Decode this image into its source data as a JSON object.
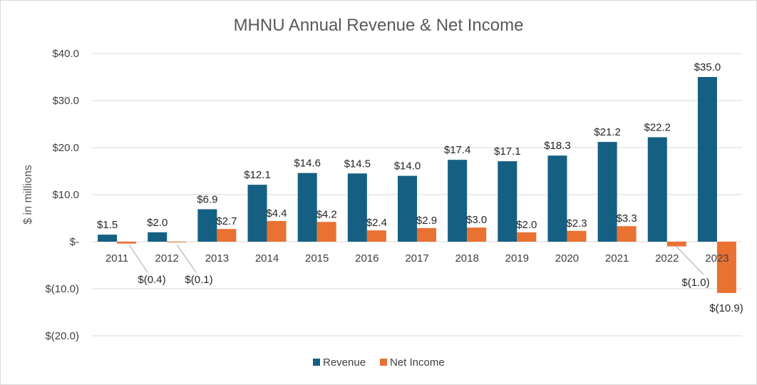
{
  "chart_data": {
    "type": "bar",
    "title": "MHNU Annual Revenue & Net Income",
    "xlabel": "",
    "ylabel": "$ in millions",
    "ylim": [
      -20,
      40
    ],
    "yticks": [
      40,
      30,
      20,
      10,
      0,
      -10,
      -20
    ],
    "ytick_labels": [
      "$40.0",
      "$30.0",
      "$20.0",
      "$10.0",
      "$-",
      "$(10.0)",
      "$(20.0)"
    ],
    "grid": true,
    "legend_position": "bottom",
    "categories": [
      "2011",
      "2012",
      "2013",
      "2014",
      "2015",
      "2016",
      "2017",
      "2018",
      "2019",
      "2020",
      "2021",
      "2022",
      "2023"
    ],
    "series": [
      {
        "name": "Revenue",
        "color": "#156082",
        "values": [
          1.5,
          2.0,
          6.9,
          12.1,
          14.6,
          14.5,
          14.0,
          17.4,
          17.1,
          18.3,
          21.2,
          22.2,
          35.0
        ],
        "labels": [
          "$1.5",
          "$2.0",
          "$6.9",
          "$12.1",
          "$14.6",
          "$14.5",
          "$14.0",
          "$17.4",
          "$17.1",
          "$18.3",
          "$21.2",
          "$22.2",
          "$35.0"
        ]
      },
      {
        "name": "Net Income",
        "color": "#E97132",
        "values": [
          -0.4,
          -0.1,
          2.7,
          4.4,
          4.2,
          2.4,
          2.9,
          3.0,
          2.0,
          2.3,
          3.3,
          -1.0,
          -10.9
        ],
        "labels": [
          "$(0.4)",
          "$(0.1)",
          "$2.7",
          "$4.4",
          "$4.2",
          "$2.4",
          "$2.9",
          "$3.0",
          "$2.0",
          "$2.3",
          "$3.3",
          "$(1.0)",
          "$(10.9)"
        ]
      }
    ]
  }
}
